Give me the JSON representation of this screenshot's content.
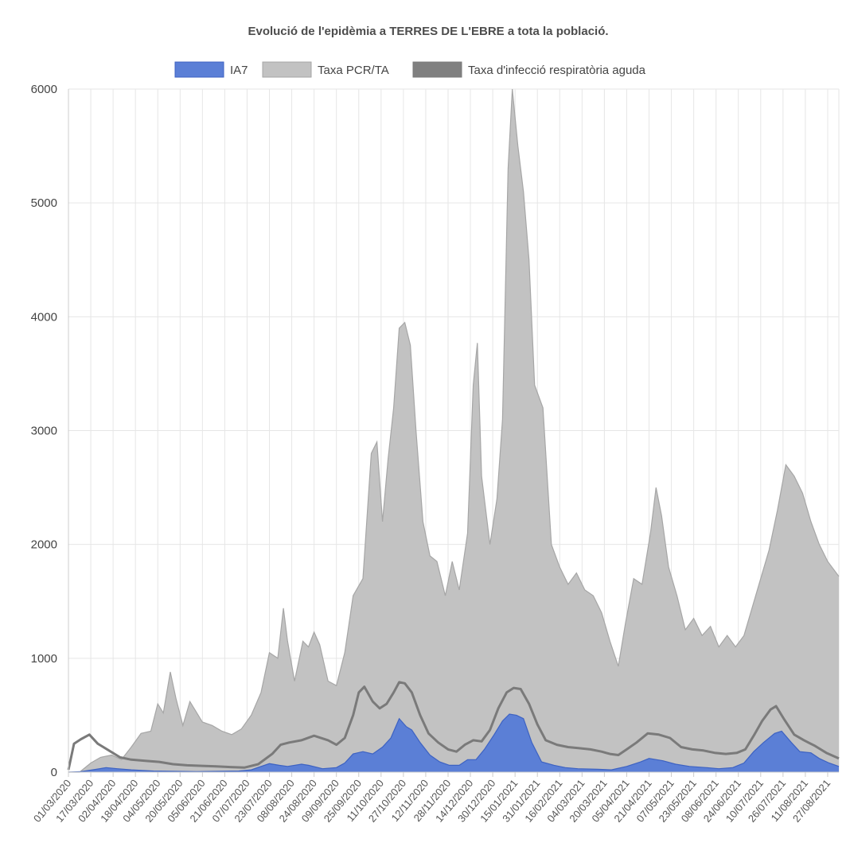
{
  "chart_data": {
    "type": "area",
    "title": "Evolució de l'epidèmia a TERRES DE L'EBRE a tota la població.",
    "ylim": [
      0,
      6000
    ],
    "yticks": [
      0,
      1000,
      2000,
      3000,
      4000,
      5000,
      6000
    ],
    "grid": true,
    "legend_position": "top",
    "x_tick_labels": [
      "01/03/2020",
      "17/03/2020",
      "02/04/2020",
      "18/04/2020",
      "04/05/2020",
      "20/05/2020",
      "05/06/2020",
      "21/06/2020",
      "07/07/2020",
      "23/07/2020",
      "08/08/2020",
      "24/08/2020",
      "09/09/2020",
      "25/09/2020",
      "11/10/2020",
      "27/10/2020",
      "12/11/2020",
      "28/11/2020",
      "14/12/2020",
      "30/12/2020",
      "15/01/2021",
      "31/01/2021",
      "16/02/2021",
      "04/03/2021",
      "20/03/2021",
      "05/04/2021",
      "21/04/2021",
      "07/05/2021",
      "23/05/2021",
      "08/06/2021",
      "24/06/2021",
      "10/07/2021",
      "26/07/2021",
      "11/08/2021",
      "27/08/2021"
    ],
    "x_range": [
      "01/03/2020",
      "04/09/2021"
    ],
    "series": [
      {
        "name": "IA7",
        "kind": "filled",
        "fill": "#5b7fd6",
        "stroke": "#3d62c2",
        "points": [
          [
            "01/03/2020",
            0
          ],
          [
            "10/03/2020",
            5
          ],
          [
            "21/03/2020",
            25
          ],
          [
            "28/03/2020",
            40
          ],
          [
            "05/04/2020",
            30
          ],
          [
            "15/04/2020",
            20
          ],
          [
            "01/05/2020",
            10
          ],
          [
            "01/06/2020",
            5
          ],
          [
            "01/07/2020",
            10
          ],
          [
            "10/07/2020",
            20
          ],
          [
            "17/07/2020",
            50
          ],
          [
            "23/07/2020",
            75
          ],
          [
            "30/07/2020",
            60
          ],
          [
            "05/08/2020",
            50
          ],
          [
            "15/08/2020",
            70
          ],
          [
            "20/08/2020",
            60
          ],
          [
            "30/08/2020",
            30
          ],
          [
            "09/09/2020",
            40
          ],
          [
            "15/09/2020",
            80
          ],
          [
            "21/09/2020",
            160
          ],
          [
            "28/09/2020",
            180
          ],
          [
            "05/10/2020",
            160
          ],
          [
            "12/10/2020",
            220
          ],
          [
            "18/10/2020",
            300
          ],
          [
            "24/10/2020",
            470
          ],
          [
            "29/10/2020",
            400
          ],
          [
            "02/11/2020",
            370
          ],
          [
            "08/11/2020",
            260
          ],
          [
            "15/11/2020",
            150
          ],
          [
            "22/11/2020",
            90
          ],
          [
            "29/11/2020",
            60
          ],
          [
            "06/12/2020",
            60
          ],
          [
            "12/12/2020",
            110
          ],
          [
            "18/12/2020",
            110
          ],
          [
            "24/12/2020",
            200
          ],
          [
            "31/12/2020",
            330
          ],
          [
            "06/01/2021",
            450
          ],
          [
            "11/01/2021",
            510
          ],
          [
            "16/01/2021",
            500
          ],
          [
            "21/01/2021",
            470
          ],
          [
            "27/01/2021",
            260
          ],
          [
            "03/02/2021",
            90
          ],
          [
            "12/02/2021",
            60
          ],
          [
            "20/02/2021",
            40
          ],
          [
            "01/03/2021",
            30
          ],
          [
            "15/03/2021",
            25
          ],
          [
            "25/03/2021",
            20
          ],
          [
            "05/04/2021",
            50
          ],
          [
            "15/04/2021",
            90
          ],
          [
            "21/04/2021",
            120
          ],
          [
            "01/05/2021",
            100
          ],
          [
            "10/05/2021",
            70
          ],
          [
            "20/05/2021",
            50
          ],
          [
            "01/06/2021",
            40
          ],
          [
            "10/06/2021",
            30
          ],
          [
            "20/06/2021",
            40
          ],
          [
            "28/06/2021",
            80
          ],
          [
            "05/07/2021",
            180
          ],
          [
            "12/07/2021",
            260
          ],
          [
            "20/07/2021",
            340
          ],
          [
            "25/07/2021",
            360
          ],
          [
            "01/08/2021",
            260
          ],
          [
            "07/08/2021",
            180
          ],
          [
            "15/08/2021",
            170
          ],
          [
            "21/08/2021",
            120
          ],
          [
            "28/08/2021",
            80
          ],
          [
            "04/09/2021",
            50
          ]
        ]
      },
      {
        "name": "Taxa PCR/TA",
        "kind": "filled",
        "fill": "#c2c2c2",
        "stroke": "#a6a6a6",
        "points": [
          [
            "01/03/2020",
            0
          ],
          [
            "09/03/2020",
            0
          ],
          [
            "17/03/2020",
            80
          ],
          [
            "24/03/2020",
            130
          ],
          [
            "01/04/2020",
            150
          ],
          [
            "08/04/2020",
            110
          ],
          [
            "15/04/2020",
            220
          ],
          [
            "22/04/2020",
            340
          ],
          [
            "29/04/2020",
            360
          ],
          [
            "04/05/2020",
            600
          ],
          [
            "08/05/2020",
            520
          ],
          [
            "13/05/2020",
            880
          ],
          [
            "17/05/2020",
            650
          ],
          [
            "22/05/2020",
            410
          ],
          [
            "27/05/2020",
            620
          ],
          [
            "31/05/2020",
            540
          ],
          [
            "05/06/2020",
            440
          ],
          [
            "12/06/2020",
            410
          ],
          [
            "19/06/2020",
            360
          ],
          [
            "26/06/2020",
            330
          ],
          [
            "03/07/2020",
            380
          ],
          [
            "10/07/2020",
            500
          ],
          [
            "17/07/2020",
            700
          ],
          [
            "23/07/2020",
            1050
          ],
          [
            "29/07/2020",
            1000
          ],
          [
            "02/08/2020",
            1440
          ],
          [
            "05/08/2020",
            1150
          ],
          [
            "10/08/2020",
            800
          ],
          [
            "16/08/2020",
            1150
          ],
          [
            "20/08/2020",
            1100
          ],
          [
            "24/08/2020",
            1230
          ],
          [
            "28/08/2020",
            1120
          ],
          [
            "03/09/2020",
            800
          ],
          [
            "09/09/2020",
            760
          ],
          [
            "15/09/2020",
            1050
          ],
          [
            "21/09/2020",
            1550
          ],
          [
            "28/09/2020",
            1700
          ],
          [
            "04/10/2020",
            2800
          ],
          [
            "08/10/2020",
            2900
          ],
          [
            "12/10/2020",
            2200
          ],
          [
            "16/10/2020",
            2750
          ],
          [
            "20/10/2020",
            3200
          ],
          [
            "24/10/2020",
            3900
          ],
          [
            "28/10/2020",
            3950
          ],
          [
            "01/11/2020",
            3750
          ],
          [
            "05/11/2020",
            3000
          ],
          [
            "10/11/2020",
            2200
          ],
          [
            "15/11/2020",
            1900
          ],
          [
            "20/11/2020",
            1850
          ],
          [
            "26/11/2020",
            1550
          ],
          [
            "01/12/2020",
            1850
          ],
          [
            "06/12/2020",
            1600
          ],
          [
            "12/12/2020",
            2100
          ],
          [
            "16/12/2020",
            3400
          ],
          [
            "19/12/2020",
            3770
          ],
          [
            "22/12/2020",
            2600
          ],
          [
            "28/12/2020",
            2000
          ],
          [
            "02/01/2021",
            2400
          ],
          [
            "06/01/2021",
            3100
          ],
          [
            "10/01/2021",
            5300
          ],
          [
            "13/01/2021",
            6000
          ],
          [
            "17/01/2021",
            5500
          ],
          [
            "21/01/2021",
            5100
          ],
          [
            "25/01/2021",
            4500
          ],
          [
            "29/01/2021",
            3400
          ],
          [
            "04/02/2021",
            3200
          ],
          [
            "10/02/2021",
            2000
          ],
          [
            "16/02/2021",
            1800
          ],
          [
            "22/02/2021",
            1650
          ],
          [
            "28/02/2021",
            1750
          ],
          [
            "06/03/2021",
            1600
          ],
          [
            "12/03/2021",
            1550
          ],
          [
            "18/03/2021",
            1400
          ],
          [
            "24/03/2021",
            1150
          ],
          [
            "30/03/2021",
            930
          ],
          [
            "04/04/2021",
            1300
          ],
          [
            "10/04/2021",
            1700
          ],
          [
            "16/04/2021",
            1650
          ],
          [
            "22/04/2021",
            2100
          ],
          [
            "26/04/2021",
            2500
          ],
          [
            "30/04/2021",
            2250
          ],
          [
            "05/05/2021",
            1800
          ],
          [
            "11/05/2021",
            1550
          ],
          [
            "17/05/2021",
            1250
          ],
          [
            "23/05/2021",
            1350
          ],
          [
            "29/05/2021",
            1200
          ],
          [
            "04/06/2021",
            1280
          ],
          [
            "10/06/2021",
            1100
          ],
          [
            "16/06/2021",
            1200
          ],
          [
            "22/06/2021",
            1100
          ],
          [
            "28/06/2021",
            1200
          ],
          [
            "04/07/2021",
            1450
          ],
          [
            "10/07/2021",
            1700
          ],
          [
            "16/07/2021",
            1950
          ],
          [
            "22/07/2021",
            2300
          ],
          [
            "28/07/2021",
            2700
          ],
          [
            "03/08/2021",
            2600
          ],
          [
            "09/08/2021",
            2450
          ],
          [
            "15/08/2021",
            2200
          ],
          [
            "21/08/2021",
            2000
          ],
          [
            "27/08/2021",
            1850
          ],
          [
            "04/09/2021",
            1720
          ]
        ]
      },
      {
        "name": "Taxa d'infecció respiratòria aguda",
        "kind": "line",
        "fill": "#808080",
        "stroke": "#7a7a7a",
        "points": [
          [
            "01/03/2020",
            20
          ],
          [
            "05/03/2020",
            250
          ],
          [
            "10/03/2020",
            290
          ],
          [
            "16/03/2020",
            330
          ],
          [
            "22/03/2020",
            250
          ],
          [
            "30/03/2020",
            190
          ],
          [
            "07/04/2020",
            130
          ],
          [
            "15/04/2020",
            110
          ],
          [
            "25/04/2020",
            100
          ],
          [
            "05/05/2020",
            90
          ],
          [
            "15/05/2020",
            70
          ],
          [
            "25/05/2020",
            60
          ],
          [
            "05/06/2020",
            55
          ],
          [
            "15/06/2020",
            50
          ],
          [
            "25/06/2020",
            45
          ],
          [
            "05/07/2020",
            40
          ],
          [
            "15/07/2020",
            70
          ],
          [
            "25/07/2020",
            160
          ],
          [
            "31/07/2020",
            240
          ],
          [
            "06/08/2020",
            260
          ],
          [
            "15/08/2020",
            280
          ],
          [
            "24/08/2020",
            320
          ],
          [
            "03/09/2020",
            280
          ],
          [
            "09/09/2020",
            240
          ],
          [
            "15/09/2020",
            300
          ],
          [
            "21/09/2020",
            500
          ],
          [
            "25/09/2020",
            700
          ],
          [
            "29/09/2020",
            750
          ],
          [
            "05/10/2020",
            620
          ],
          [
            "10/10/2020",
            560
          ],
          [
            "15/10/2020",
            600
          ],
          [
            "20/10/2020",
            700
          ],
          [
            "24/10/2020",
            790
          ],
          [
            "28/10/2020",
            780
          ],
          [
            "02/11/2020",
            700
          ],
          [
            "08/11/2020",
            500
          ],
          [
            "14/11/2020",
            340
          ],
          [
            "21/11/2020",
            260
          ],
          [
            "28/11/2020",
            200
          ],
          [
            "04/12/2020",
            180
          ],
          [
            "10/12/2020",
            240
          ],
          [
            "16/12/2020",
            280
          ],
          [
            "22/12/2020",
            270
          ],
          [
            "28/12/2020",
            370
          ],
          [
            "03/01/2021",
            560
          ],
          [
            "09/01/2021",
            700
          ],
          [
            "14/01/2021",
            740
          ],
          [
            "19/01/2021",
            730
          ],
          [
            "25/01/2021",
            600
          ],
          [
            "31/01/2021",
            420
          ],
          [
            "06/02/2021",
            280
          ],
          [
            "14/02/2021",
            240
          ],
          [
            "22/02/2021",
            220
          ],
          [
            "02/03/2021",
            210
          ],
          [
            "10/03/2021",
            200
          ],
          [
            "18/03/2021",
            180
          ],
          [
            "24/03/2021",
            160
          ],
          [
            "30/03/2021",
            150
          ],
          [
            "05/04/2021",
            200
          ],
          [
            "12/04/2021",
            260
          ],
          [
            "20/04/2021",
            340
          ],
          [
            "28/04/2021",
            330
          ],
          [
            "06/05/2021",
            300
          ],
          [
            "14/05/2021",
            220
          ],
          [
            "22/05/2021",
            200
          ],
          [
            "30/05/2021",
            190
          ],
          [
            "07/06/2021",
            170
          ],
          [
            "15/06/2021",
            160
          ],
          [
            "23/06/2021",
            170
          ],
          [
            "29/06/2021",
            200
          ],
          [
            "05/07/2021",
            320
          ],
          [
            "11/07/2021",
            450
          ],
          [
            "17/07/2021",
            550
          ],
          [
            "21/07/2021",
            580
          ],
          [
            "27/07/2021",
            460
          ],
          [
            "03/08/2021",
            330
          ],
          [
            "10/08/2021",
            280
          ],
          [
            "18/08/2021",
            230
          ],
          [
            "26/08/2021",
            170
          ],
          [
            "04/09/2021",
            120
          ]
        ]
      }
    ]
  }
}
